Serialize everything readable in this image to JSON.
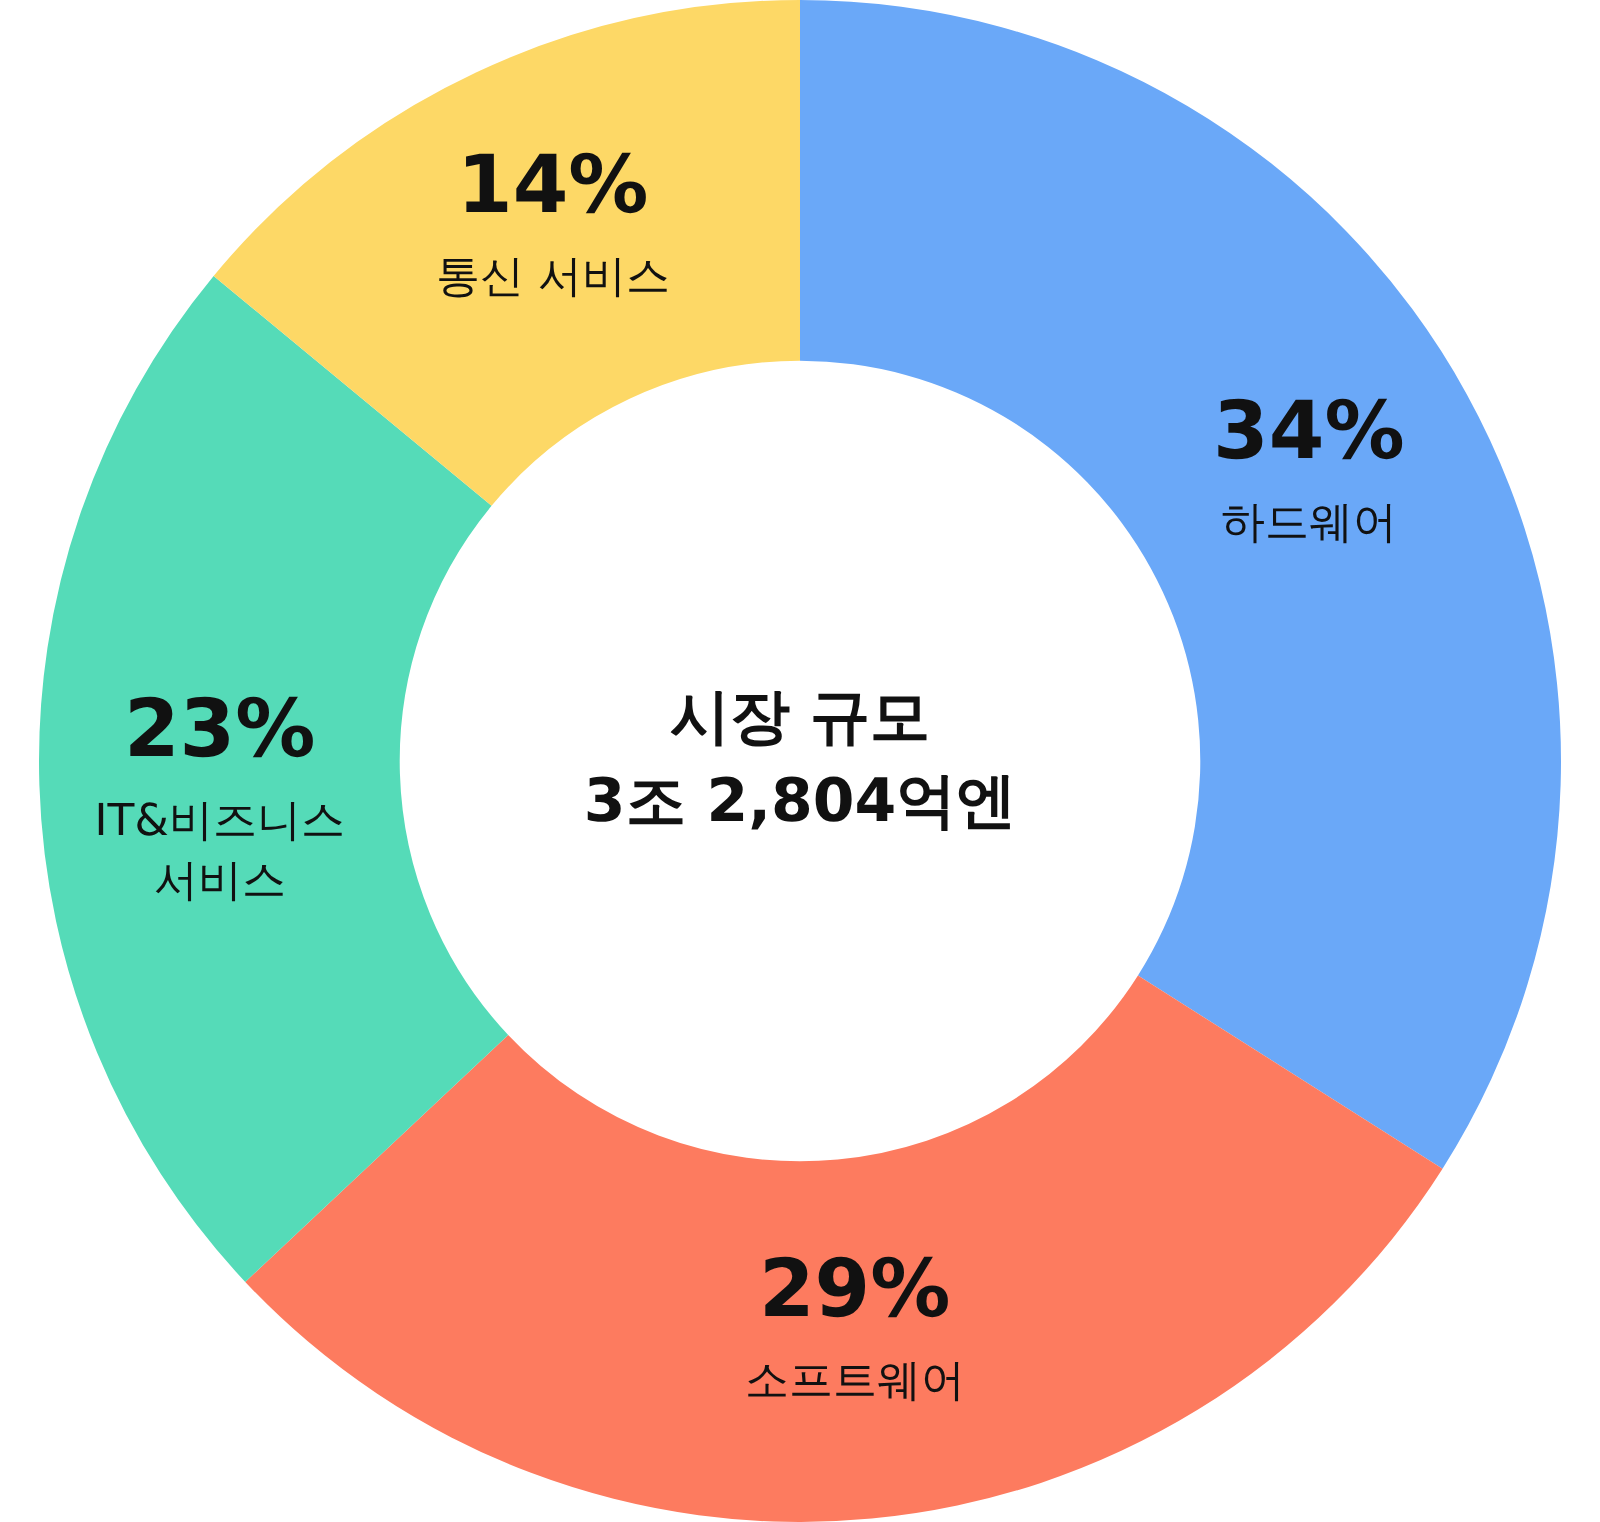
{
  "chart_data": {
    "type": "donut",
    "title": "시장 규모",
    "subtitle": "3조 2,804억엔",
    "categories": [
      "하드웨어",
      "소프트웨어",
      "IT&비즈니스 서비스",
      "통신 서비스"
    ],
    "values": [
      34,
      29,
      23,
      14
    ],
    "value_labels": [
      "34%",
      "29%",
      "23%",
      "14%"
    ],
    "colors": [
      "#6aa8f8",
      "#fd7b5f",
      "#55dbb8",
      "#fdd866"
    ],
    "legend": false
  }
}
